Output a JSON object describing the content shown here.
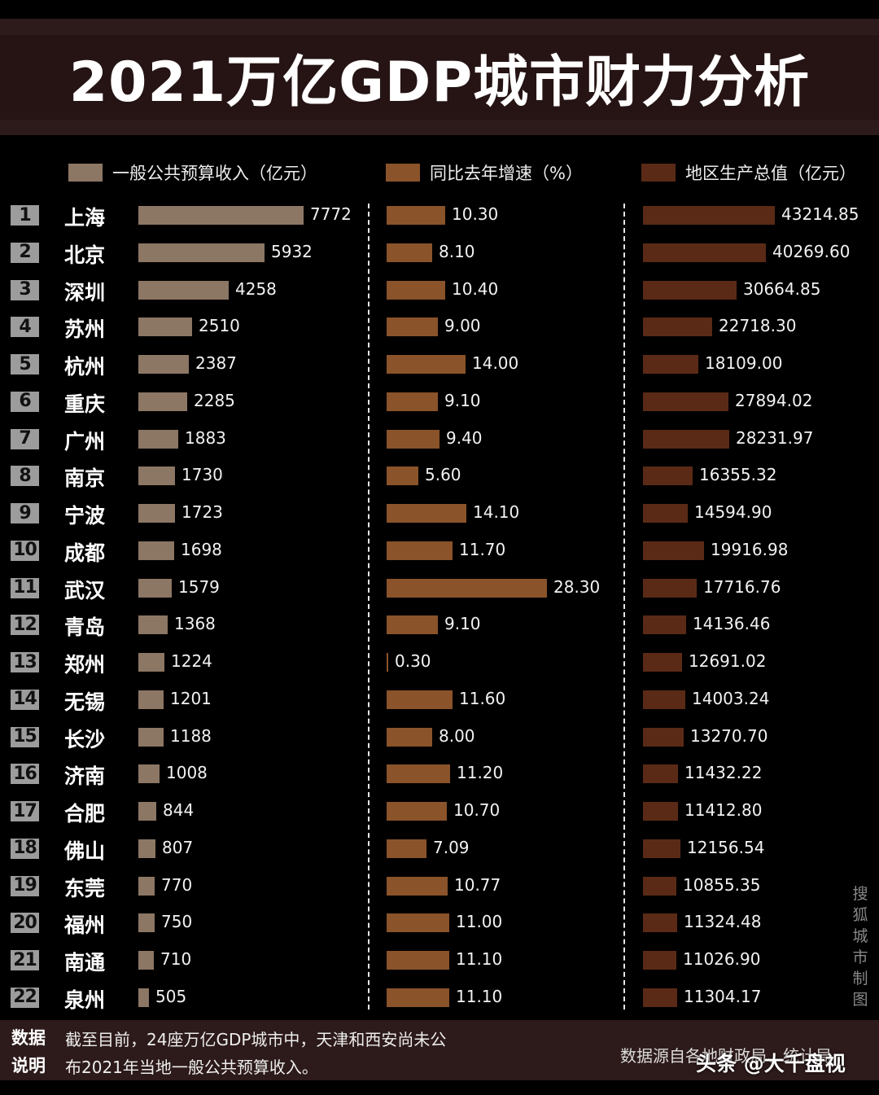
{
  "title": "2021万亿GDP城市财力分析",
  "legend": [
    {
      "label": "一般公共预算收入（亿元）",
      "color": "#8c7664"
    },
    {
      "label": "同比去年增速（%）",
      "color": "#8a532a"
    },
    {
      "label": "地区生产总值（亿元）",
      "color": "#5a2a16"
    }
  ],
  "rows": [
    {
      "rank": "1",
      "city": "上海",
      "revenue": "7772",
      "growth": "10.30",
      "gdp": "43214.85"
    },
    {
      "rank": "2",
      "city": "北京",
      "revenue": "5932",
      "growth": "8.10",
      "gdp": "40269.60"
    },
    {
      "rank": "3",
      "city": "深圳",
      "revenue": "4258",
      "growth": "10.40",
      "gdp": "30664.85"
    },
    {
      "rank": "4",
      "city": "苏州",
      "revenue": "2510",
      "growth": "9.00",
      "gdp": "22718.30"
    },
    {
      "rank": "5",
      "city": "杭州",
      "revenue": "2387",
      "growth": "14.00",
      "gdp": "18109.00"
    },
    {
      "rank": "6",
      "city": "重庆",
      "revenue": "2285",
      "growth": "9.10",
      "gdp": "27894.02"
    },
    {
      "rank": "7",
      "city": "广州",
      "revenue": "1883",
      "growth": "9.40",
      "gdp": "28231.97"
    },
    {
      "rank": "8",
      "city": "南京",
      "revenue": "1730",
      "growth": "5.60",
      "gdp": "16355.32"
    },
    {
      "rank": "9",
      "city": "宁波",
      "revenue": "1723",
      "growth": "14.10",
      "gdp": "14594.90"
    },
    {
      "rank": "10",
      "city": "成都",
      "revenue": "1698",
      "growth": "11.70",
      "gdp": "19916.98"
    },
    {
      "rank": "11",
      "city": "武汉",
      "revenue": "1579",
      "growth": "28.30",
      "gdp": "17716.76"
    },
    {
      "rank": "12",
      "city": "青岛",
      "revenue": "1368",
      "growth": "9.10",
      "gdp": "14136.46"
    },
    {
      "rank": "13",
      "city": "郑州",
      "revenue": "1224",
      "growth": "0.30",
      "gdp": "12691.02"
    },
    {
      "rank": "14",
      "city": "无锡",
      "revenue": "1201",
      "growth": "11.60",
      "gdp": "14003.24"
    },
    {
      "rank": "15",
      "city": "长沙",
      "revenue": "1188",
      "growth": "8.00",
      "gdp": "13270.70"
    },
    {
      "rank": "16",
      "city": "济南",
      "revenue": "1008",
      "growth": "11.20",
      "gdp": "11432.22"
    },
    {
      "rank": "17",
      "city": "合肥",
      "revenue": "844",
      "growth": "10.70",
      "gdp": "11412.80"
    },
    {
      "rank": "18",
      "city": "佛山",
      "revenue": "807",
      "growth": "7.09",
      "gdp": "12156.54"
    },
    {
      "rank": "19",
      "city": "东莞",
      "revenue": "770",
      "growth": "10.77",
      "gdp": "10855.35"
    },
    {
      "rank": "20",
      "city": "福州",
      "revenue": "750",
      "growth": "11.00",
      "gdp": "11324.48"
    },
    {
      "rank": "21",
      "city": "南通",
      "revenue": "710",
      "growth": "11.10",
      "gdp": "11026.90"
    },
    {
      "rank": "22",
      "city": "泉州",
      "revenue": "505",
      "growth": "11.10",
      "gdp": "11304.17"
    }
  ],
  "watermark_vertical": "搜狐城市制图",
  "footer": {
    "tag_line1": "数据",
    "tag_line2": "说明",
    "note_line1": "截至目前，24座万亿GDP城市中，天津和西安尚未公",
    "note_line2": "布2021年当地一般公共预算收入。",
    "source": "数据源自各地财政局、统计局",
    "overlay_watermark": "头条 @大千盘视"
  },
  "chart_data": {
    "type": "bar",
    "orientation": "horizontal",
    "title": "2021万亿GDP城市财力分析",
    "categories": [
      "上海",
      "北京",
      "深圳",
      "苏州",
      "杭州",
      "重庆",
      "广州",
      "南京",
      "宁波",
      "成都",
      "武汉",
      "青岛",
      "郑州",
      "无锡",
      "长沙",
      "济南",
      "合肥",
      "佛山",
      "东莞",
      "福州",
      "南通",
      "泉州"
    ],
    "series": [
      {
        "name": "一般公共预算收入（亿元）",
        "color": "#8c7664",
        "values": [
          7772,
          5932,
          4258,
          2510,
          2387,
          2285,
          1883,
          1730,
          1723,
          1698,
          1579,
          1368,
          1224,
          1201,
          1188,
          1008,
          844,
          807,
          770,
          750,
          710,
          505
        ]
      },
      {
        "name": "同比去年增速（%）",
        "color": "#8a532a",
        "values": [
          10.3,
          8.1,
          10.4,
          9.0,
          14.0,
          9.1,
          9.4,
          5.6,
          14.1,
          11.7,
          28.3,
          9.1,
          0.3,
          11.6,
          8.0,
          11.2,
          10.7,
          7.09,
          10.77,
          11.0,
          11.1,
          11.1
        ]
      },
      {
        "name": "地区生产总值（亿元）",
        "color": "#5a2a16",
        "values": [
          43214.85,
          40269.6,
          30664.85,
          22718.3,
          18109.0,
          27894.02,
          28231.97,
          16355.32,
          14594.9,
          19916.98,
          17716.76,
          14136.46,
          12691.02,
          14003.24,
          13270.7,
          11432.22,
          11412.8,
          12156.54,
          10855.35,
          11324.48,
          11026.9,
          11304.17
        ]
      }
    ],
    "legend_position": "top",
    "grid": false,
    "notes": "截至目前，24座万亿GDP城市中，天津和西安尚未公布2021年当地一般公共预算收入。",
    "source": "数据源自各地财政局、统计局"
  }
}
